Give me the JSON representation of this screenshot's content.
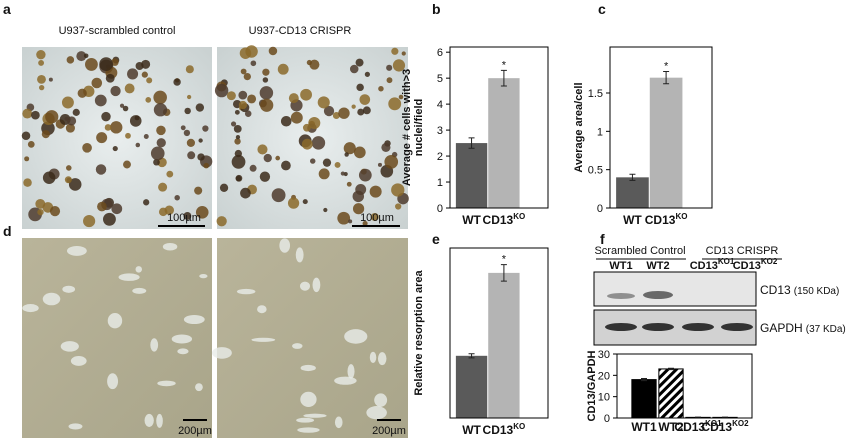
{
  "figure": {
    "panel_labels": {
      "a": "a",
      "d": "d"
    },
    "image_titles": [
      "U937-scrambled control",
      "U937-CD13 CRISPR"
    ],
    "scale_bars_top": [
      "100µm",
      "100µm"
    ],
    "scale_bars_bottom": [
      "200µm",
      "200µm"
    ],
    "blot": {
      "groups": [
        "Scrambled Control",
        "CD13 CRISPR"
      ],
      "lanes": [
        {
          "text": "WT1"
        },
        {
          "text": "WT2"
        },
        {
          "text": "CD13",
          "sup": "KO1"
        },
        {
          "text": "CD13",
          "sup": "KO2"
        }
      ],
      "rows": [
        {
          "name": "CD13",
          "size": "(150 KDa)"
        },
        {
          "name": "GAPDH",
          "size": "(37 KDa)"
        }
      ]
    }
  },
  "chart_data": [
    {
      "type": "bar",
      "panel_label": "b",
      "ylabel": [
        "Average # cells with>3",
        "nuclei/field"
      ],
      "categories": [
        {
          "text": "WT"
        },
        {
          "text": "CD13",
          "sup": "KO"
        }
      ],
      "values": [
        2.5,
        5.0
      ],
      "errors": [
        0.2,
        0.3
      ],
      "annotations": [
        null,
        "*"
      ],
      "colors": [
        "#5a5a5a",
        "#b4b4b4"
      ],
      "ylim": [
        0,
        6.2
      ],
      "yticks": [
        0,
        1,
        2,
        3,
        4,
        5,
        6
      ]
    },
    {
      "type": "bar",
      "panel_label": "c",
      "ylabel": [
        "Average area/cell"
      ],
      "categories": [
        {
          "text": "WT"
        },
        {
          "text": "CD13",
          "sup": "KO"
        }
      ],
      "values": [
        0.4,
        1.7
      ],
      "errors": [
        0.04,
        0.08
      ],
      "annotations": [
        null,
        "*"
      ],
      "colors": [
        "#5a5a5a",
        "#b4b4b4"
      ],
      "ylim": [
        0,
        2.1
      ],
      "yticks": [
        0,
        0.5,
        1,
        1.5
      ]
    },
    {
      "type": "bar",
      "panel_label": "e",
      "ylabel": [
        "Relative resorption area"
      ],
      "categories": [
        {
          "text": "WT"
        },
        {
          "text": "CD13",
          "sup": "KO"
        }
      ],
      "values": [
        1.5,
        3.5
      ],
      "errors": [
        0.05,
        0.2
      ],
      "annotations": [
        null,
        "*"
      ],
      "colors": [
        "#5a5a5a",
        "#b4b4b4"
      ],
      "ylim": [
        0,
        4.1
      ]
    },
    {
      "type": "bar",
      "panel_label": "f",
      "ylabel": [
        "CD13/GAPDH"
      ],
      "categories": [
        {
          "text": "WT1"
        },
        {
          "text": "WT2"
        },
        {
          "text": "CD13",
          "sup": "KO1"
        },
        {
          "text": "CD13",
          "sup": "KO2"
        }
      ],
      "values": [
        18,
        23,
        0.3,
        0.3
      ],
      "errors": [
        0.5,
        0.3,
        0.1,
        0.1
      ],
      "colors": [
        "#000000",
        "#ffffff",
        "#ffffff",
        "#ffffff"
      ],
      "hatch": [
        false,
        true,
        false,
        false
      ],
      "ylim": [
        0,
        30
      ],
      "yticks": [
        0,
        10,
        20,
        30
      ]
    }
  ]
}
